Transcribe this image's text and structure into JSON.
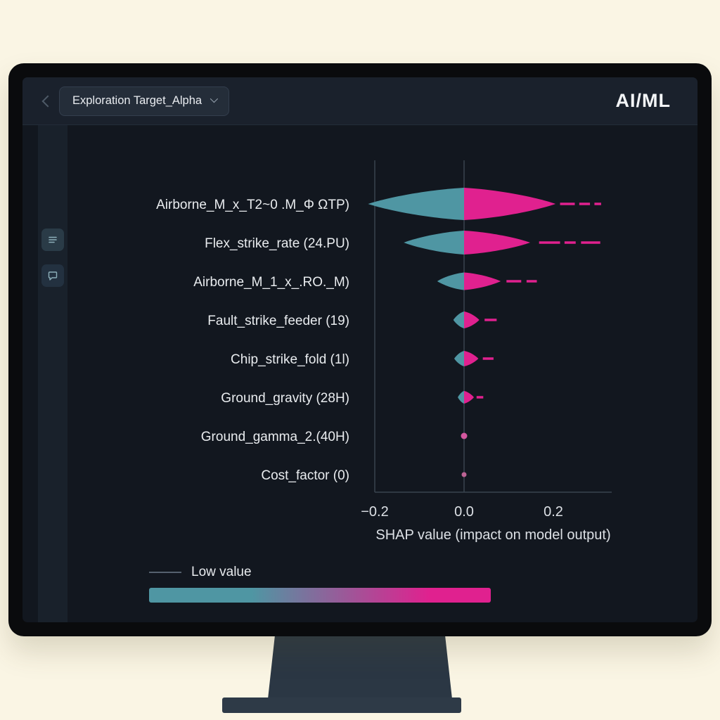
{
  "topbar": {
    "breadcrumb_label": "Exploration Target_Alpha",
    "app_label": "AI/ML"
  },
  "sidebar": {
    "buttons": [
      {
        "icon": "menu-icon"
      },
      {
        "icon": "chat-icon"
      }
    ]
  },
  "legend": {
    "low_label": "Low value"
  },
  "chart_data": {
    "type": "violin",
    "xlabel": "SHAP value (impact on model output)",
    "xlim": [
      -0.2,
      0.33
    ],
    "grid": false,
    "x_ticks": [
      {
        "value": -0.2,
        "label": "−0.2"
      },
      {
        "value": 0.0,
        "label": "0.0"
      },
      {
        "value": 0.2,
        "label": "0.2"
      }
    ],
    "colors": {
      "low": "#4f96a3",
      "high": "#e0218f",
      "axis": "#39434f"
    },
    "features": [
      {
        "name": "Airborne_M_x_T2~0 .M_Φ ΩTP)",
        "neg": -0.215,
        "pos": 0.205,
        "h": 23,
        "dashes": [
          [
            0.215,
            0.248
          ],
          [
            0.258,
            0.282
          ],
          [
            0.292,
            0.307
          ]
        ]
      },
      {
        "name": "Flex_strike_rate (24.PU)",
        "neg": -0.135,
        "pos": 0.148,
        "h": 17,
        "dashes": [
          [
            0.168,
            0.215
          ],
          [
            0.225,
            0.25
          ],
          [
            0.262,
            0.305
          ]
        ]
      },
      {
        "name": "Airborne_M_1_x_.RO._M)",
        "neg": -0.06,
        "pos": 0.082,
        "h": 12.5,
        "dashes": [
          [
            0.095,
            0.128
          ],
          [
            0.14,
            0.163
          ]
        ]
      },
      {
        "name": "Fault_strike_feeder (19)",
        "neg": -0.024,
        "pos": 0.034,
        "h": 12,
        "dashes": [
          [
            0.046,
            0.073
          ]
        ]
      },
      {
        "name": "Chip_strike_fold (1l)",
        "neg": -0.022,
        "pos": 0.032,
        "h": 11,
        "dashes": [
          [
            0.042,
            0.066
          ]
        ]
      },
      {
        "name": "Ground_gravity (28H)",
        "neg": -0.014,
        "pos": 0.022,
        "h": 9,
        "dashes": [
          [
            0.028,
            0.043
          ]
        ]
      },
      {
        "name": "Ground_gamma_2.(40H)",
        "neg": -0.006,
        "pos": 0.007,
        "h": 4.5,
        "dashes": [],
        "dot": {
          "r": 4.5,
          "color": "#d4579f"
        }
      },
      {
        "name": "Cost_factor (0)",
        "neg": -0.005,
        "pos": 0.005,
        "h": 3.5,
        "dashes": [],
        "dot": {
          "r": 3.5,
          "color": "#bd6394"
        }
      }
    ]
  }
}
